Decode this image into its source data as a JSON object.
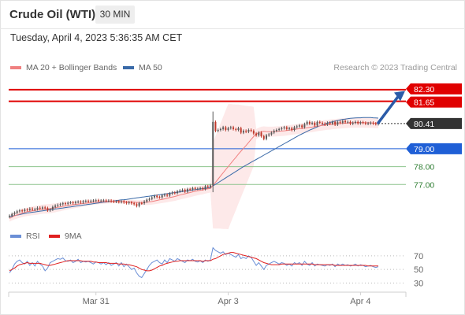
{
  "header": {
    "instrument": "Crude Oil (WTI)",
    "timeframe": "30 MIN",
    "timestamp": "Tuesday, April 4, 2023 5:36:35 AM CET",
    "credit": "Research © 2023 Trading Central"
  },
  "colors": {
    "candle_up": "#5a5a5a",
    "candle_down": "#c0392b",
    "ma20": "#f08080",
    "bollinger_fill": "#fde3e3",
    "ma50": "#3a6aa8",
    "resistance": "#e00000",
    "current_price": "#333333",
    "pivot": "#1f5fd6",
    "support": "#8dc48d",
    "support_text": "#2e7d32",
    "rsi": "#6b8fd6",
    "rsi_ma": "#e02020",
    "arrow": "#2b5ba8"
  },
  "chart_data": [
    {
      "type": "candlestick",
      "title": "Crude Oil (WTI) — 30 MIN",
      "legend": [
        {
          "name": "MA 20 + Bollinger Bands",
          "color": "#f08080"
        },
        {
          "name": "MA 50",
          "color": "#3a6aa8"
        }
      ],
      "legend_placement": "top-left",
      "x_tick_labels": [
        "Mar 31",
        "Apr 3",
        "Apr 4"
      ],
      "x_tick_index": [
        34,
        86,
        138
      ],
      "ylim": [
        74.9,
        83.0
      ],
      "levels": [
        {
          "label": "82.30",
          "value": 82.3,
          "kind": "resistance"
        },
        {
          "label": "81.65",
          "value": 81.65,
          "kind": "resistance"
        },
        {
          "label": "80.41",
          "value": 80.41,
          "kind": "current"
        },
        {
          "label": "79.00",
          "value": 79.0,
          "kind": "pivot"
        },
        {
          "label": "78.00",
          "value": 78.0,
          "kind": "support"
        },
        {
          "label": "77.00",
          "value": 77.0,
          "kind": "support"
        }
      ],
      "close": [
        75.25,
        75.35,
        75.42,
        75.5,
        75.55,
        75.52,
        75.6,
        75.58,
        75.65,
        75.6,
        75.62,
        75.7,
        75.66,
        75.72,
        75.68,
        75.55,
        75.6,
        75.75,
        75.82,
        75.86,
        75.9,
        75.95,
        75.92,
        75.98,
        76.0,
        75.96,
        76.02,
        76.04,
        76.0,
        76.06,
        76.08,
        76.05,
        76.08,
        76.1,
        76.12,
        76.09,
        76.1,
        76.11,
        76.08,
        76.1,
        76.06,
        76.04,
        76.05,
        76.02,
        76.05,
        76.0,
        75.96,
        76.0,
        75.95,
        75.9,
        75.8,
        75.96,
        75.95,
        76.05,
        76.15,
        76.2,
        76.28,
        76.36,
        76.3,
        76.28,
        76.4,
        76.43,
        76.38,
        76.5,
        76.55,
        76.52,
        76.62,
        76.66,
        76.7,
        76.6,
        76.74,
        76.72,
        76.8,
        76.76,
        76.77,
        76.8,
        76.75,
        76.9,
        76.86,
        76.95,
        80.5,
        80.0,
        80.05,
        80.1,
        80.2,
        80.05,
        80.15,
        80.2,
        80.1,
        80.05,
        80.15,
        79.9,
        80.0,
        79.95,
        80.05,
        80.0,
        79.85,
        79.75,
        79.9,
        79.7,
        79.55,
        79.75,
        79.8,
        79.9,
        80.0,
        80.05,
        80.1,
        80.15,
        80.2,
        80.1,
        80.15,
        80.05,
        80.2,
        80.25,
        80.3,
        80.2,
        80.38,
        80.5,
        80.4,
        80.45,
        80.3,
        80.5,
        80.45,
        80.4,
        80.35,
        80.45,
        80.4,
        80.5,
        80.35,
        80.5,
        80.45,
        80.55,
        80.48,
        80.5,
        80.4,
        80.45,
        80.5,
        80.42,
        80.48,
        80.45,
        80.4,
        80.42,
        80.45,
        80.41,
        80.38,
        80.41
      ],
      "ma20": [
        75.1,
        75.18,
        75.25,
        75.3,
        75.35,
        75.4,
        75.44,
        75.48,
        75.5,
        75.53,
        75.55,
        75.57,
        75.6,
        75.62,
        75.63,
        75.64,
        75.65,
        75.68,
        75.7,
        75.73,
        75.75,
        75.78,
        75.8,
        75.83,
        75.85,
        75.87,
        75.89,
        75.9,
        75.92,
        75.94,
        75.95,
        75.97,
        75.98,
        76.0,
        76.01,
        76.02,
        76.03,
        76.04,
        76.05,
        76.05,
        76.06,
        76.06,
        76.06,
        76.06,
        76.05,
        76.05,
        76.04,
        76.03,
        76.02,
        76.01,
        76.0,
        75.99,
        75.99,
        76.0,
        76.01,
        76.03,
        76.05,
        76.08,
        76.11,
        76.14,
        76.17,
        76.2,
        76.23,
        76.27,
        76.3,
        76.33,
        76.37,
        76.41,
        76.45,
        76.48,
        76.52,
        76.55,
        76.59,
        76.62,
        76.65,
        76.68,
        76.7,
        76.73,
        76.76,
        76.78,
        76.95,
        77.12,
        77.3,
        77.48,
        77.65,
        77.83,
        78.0,
        78.18,
        78.35,
        78.52,
        78.7,
        78.86,
        79.02,
        79.18,
        79.35,
        79.52,
        79.68,
        79.82,
        79.9,
        79.95,
        79.97,
        79.96,
        79.95,
        79.95,
        79.96,
        79.97,
        79.98,
        79.99,
        80.0,
        80.02,
        80.04,
        80.06,
        80.08,
        80.1,
        80.12,
        80.13,
        80.15,
        80.17,
        80.19,
        80.21,
        80.23,
        80.26,
        80.28,
        80.3,
        80.32,
        80.34,
        80.35,
        80.37,
        80.38,
        80.4,
        80.41,
        80.42,
        80.43,
        80.44,
        80.45,
        80.45,
        80.46,
        80.46,
        80.46,
        80.46,
        80.45,
        80.45,
        80.45,
        80.44,
        80.43,
        80.43
      ],
      "ma50": [
        75.2,
        75.23,
        75.26,
        75.29,
        75.32,
        75.35,
        75.38,
        75.41,
        75.43,
        75.45,
        75.47,
        75.49,
        75.51,
        75.53,
        75.55,
        75.57,
        75.59,
        75.61,
        75.63,
        75.65,
        75.67,
        75.69,
        75.71,
        75.73,
        75.75,
        75.77,
        75.79,
        75.81,
        75.83,
        75.85,
        75.87,
        75.89,
        75.91,
        75.93,
        75.95,
        75.97,
        75.99,
        76.01,
        76.02,
        76.04,
        76.06,
        76.08,
        76.1,
        76.12,
        76.14,
        76.15,
        76.17,
        76.19,
        76.21,
        76.23,
        76.25,
        76.27,
        76.29,
        76.31,
        76.33,
        76.35,
        76.37,
        76.39,
        76.41,
        76.43,
        76.45,
        76.47,
        76.49,
        76.51,
        76.53,
        76.55,
        76.57,
        76.59,
        76.61,
        76.63,
        76.65,
        76.67,
        76.69,
        76.71,
        76.73,
        76.75,
        76.77,
        76.79,
        76.81,
        76.83,
        76.92,
        77.01,
        77.1,
        77.19,
        77.28,
        77.37,
        77.46,
        77.55,
        77.64,
        77.73,
        77.82,
        77.91,
        78.0,
        78.08,
        78.16,
        78.24,
        78.32,
        78.4,
        78.48,
        78.56,
        78.64,
        78.72,
        78.8,
        78.88,
        78.96,
        79.04,
        79.12,
        79.2,
        79.28,
        79.36,
        79.44,
        79.52,
        79.6,
        79.68,
        79.76,
        79.83,
        79.9,
        79.97,
        80.04,
        80.1,
        80.16,
        80.22,
        80.28,
        80.33,
        80.38,
        80.43,
        80.47,
        80.51,
        80.55,
        80.58,
        80.61,
        80.64,
        80.66,
        80.68,
        80.7,
        80.71,
        80.72,
        80.73,
        80.73,
        80.74,
        80.74,
        80.74,
        80.74,
        80.73,
        80.72,
        80.71
      ]
    },
    {
      "type": "line",
      "title": "RSI",
      "legend": [
        {
          "name": "RSI",
          "color": "#6b8fd6"
        },
        {
          "name": "9MA",
          "color": "#e02020"
        }
      ],
      "ylim": [
        20,
        85
      ],
      "y_ticks": [
        30,
        50,
        70
      ],
      "rsi": [
        45,
        50,
        58,
        62,
        64,
        60,
        58,
        62,
        56,
        60,
        55,
        62,
        58,
        55,
        48,
        52,
        60,
        62,
        64,
        66,
        65,
        67,
        63,
        62,
        64,
        60,
        62,
        65,
        60,
        62,
        61,
        62,
        60,
        58,
        61,
        60,
        58,
        60,
        57,
        60,
        56,
        58,
        60,
        55,
        60,
        54,
        58,
        54,
        50,
        52,
        45,
        40,
        38,
        44,
        50,
        56,
        60,
        62,
        64,
        60,
        58,
        64,
        60,
        66,
        64,
        62,
        66,
        64,
        62,
        60,
        64,
        63,
        65,
        62,
        61,
        63,
        60,
        64,
        62,
        64,
        82,
        78,
        76,
        74,
        76,
        72,
        74,
        72,
        70,
        68,
        72,
        66,
        68,
        66,
        70,
        68,
        62,
        56,
        60,
        55,
        50,
        56,
        58,
        60,
        62,
        60,
        58,
        60,
        59,
        56,
        58,
        55,
        60,
        58,
        60,
        56,
        62,
        58,
        56,
        60,
        55,
        58,
        57,
        56,
        55,
        57,
        56,
        58,
        54,
        58,
        56,
        58,
        56,
        57,
        55,
        56,
        58,
        55,
        57,
        56,
        54,
        55,
        56,
        54,
        53,
        54
      ],
      "rsi_ma": [
        48,
        50,
        52,
        55,
        57,
        58,
        59,
        60,
        59,
        59,
        59,
        59,
        59,
        58,
        57,
        56,
        56,
        57,
        58,
        59,
        60,
        61,
        62,
        63,
        63,
        63,
        63,
        63,
        63,
        62,
        62,
        62,
        62,
        61,
        61,
        60,
        60,
        60,
        60,
        59,
        59,
        59,
        59,
        58,
        58,
        58,
        57,
        57,
        56,
        55,
        54,
        52,
        50,
        49,
        48,
        48,
        49,
        51,
        53,
        55,
        56,
        58,
        59,
        60,
        61,
        62,
        62,
        63,
        63,
        63,
        63,
        63,
        63,
        63,
        63,
        63,
        62,
        63,
        63,
        63,
        65,
        66,
        68,
        70,
        72,
        73,
        74,
        75,
        75,
        74,
        73,
        72,
        71,
        70,
        69,
        68,
        67,
        66,
        64,
        62,
        60,
        59,
        58,
        57,
        57,
        57,
        57,
        58,
        58,
        58,
        58,
        58,
        58,
        58,
        58,
        58,
        58,
        58,
        58,
        58,
        57,
        57,
        57,
        57,
        57,
        57,
        57,
        57,
        56,
        56,
        56,
        56,
        56,
        56,
        56,
        56,
        56,
        56,
        56,
        56,
        56,
        55,
        55,
        55,
        55,
        55
      ]
    }
  ]
}
